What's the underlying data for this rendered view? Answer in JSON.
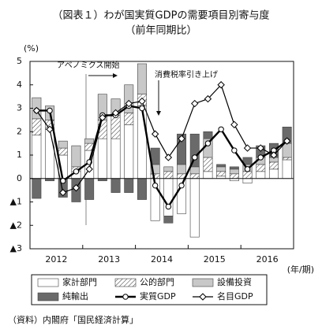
{
  "chart_data": {
    "type": "bar",
    "title": "（図表１）わが国実質GDPの需要項目別寄与度",
    "subtitle": "（前年同期比）",
    "y_label": "(%)",
    "x_label": "(年/期)",
    "source": "（資料）内閣府「国民経済計算」",
    "annotations": [
      {
        "text": "アベノミクス開始"
      },
      {
        "text": "消費税率引き上げ"
      }
    ],
    "categories": [
      "2012",
      null,
      null,
      null,
      "2013",
      null,
      null,
      null,
      "2014",
      null,
      null,
      null,
      "2015",
      null,
      null,
      null,
      "2016",
      null,
      null,
      null
    ],
    "ylim": [
      -3,
      5
    ],
    "yticks": [
      {
        "value": -3,
        "label": "▲3"
      },
      {
        "value": -2,
        "label": "▲2"
      },
      {
        "value": -1,
        "label": "▲1"
      },
      0,
      1,
      2,
      3,
      4,
      5
    ],
    "stacked": true,
    "series": [
      {
        "name": "家計部門",
        "type": "bar",
        "color": "#ffffff",
        "values": [
          1.85,
          2.1,
          1.0,
          0.3,
          1.2,
          1.7,
          1.7,
          2.3,
          3.1,
          -1.8,
          -1.6,
          -1.5,
          -2.5,
          0.3,
          0.1,
          -0.1,
          -0.2,
          0.3,
          0.4,
          0.8
        ]
      },
      {
        "name": "公的部門",
        "type": "bar",
        "color": "#ffffff",
        "hatch": true,
        "values": [
          0.7,
          0.4,
          0.3,
          0.2,
          0.3,
          0.8,
          1.0,
          0.5,
          0.5,
          0.2,
          0.3,
          0.2,
          0.2,
          0.6,
          0.2,
          0.2,
          0.3,
          0.3,
          0.3,
          0.1
        ]
      },
      {
        "name": "設備投資",
        "type": "bar",
        "color": "#c8c8c8",
        "values": [
          0.9,
          0.6,
          0.3,
          0.9,
          0.2,
          1.1,
          0.7,
          1.2,
          1.3,
          0.4,
          0.2,
          0.4,
          0.3,
          0.8,
          0.2,
          0.2,
          0.3,
          0.3,
          0.2,
          0.6
        ]
      },
      {
        "name": "純輸出",
        "type": "bar",
        "color": "#6a6a6a",
        "values": [
          -0.85,
          -0.1,
          -0.8,
          -1.0,
          -0.9,
          -0.1,
          -0.6,
          -0.6,
          -0.9,
          0.7,
          -0.3,
          1.3,
          1.4,
          0.3,
          0.1,
          0.1,
          0.3,
          0.5,
          0.6,
          0.7
        ]
      },
      {
        "name": "実質GDP",
        "type": "line",
        "color": "#000000",
        "marker": "circle",
        "width": 2.4,
        "values": [
          2.9,
          2.9,
          -0.1,
          0.3,
          0.7,
          2.7,
          2.7,
          3.1,
          3.0,
          -0.3,
          -1.2,
          -0.3,
          0.9,
          1.5,
          2.1,
          1.2,
          0.4,
          0.9,
          1.2,
          1.6
        ]
      },
      {
        "name": "名目GDP",
        "type": "line",
        "color": "#000000",
        "marker": "diamond",
        "width": 1.2,
        "values": [
          2.9,
          2.1,
          -0.6,
          -0.4,
          0.4,
          2.6,
          2.8,
          3.2,
          3.3,
          1.9,
          0.9,
          1.7,
          3.2,
          3.4,
          4.0,
          2.3,
          1.3,
          1.3,
          1.0,
          1.6
        ]
      }
    ]
  }
}
